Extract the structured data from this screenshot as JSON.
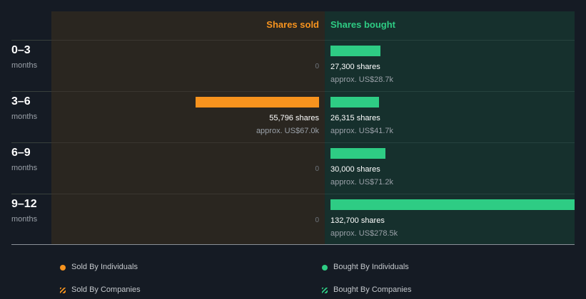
{
  "colors": {
    "sold": "#f7931e",
    "bought": "#2ecc84"
  },
  "headers": {
    "sold": "Shares sold",
    "bought": "Shares bought"
  },
  "chart_data": {
    "type": "bar",
    "categories": [
      "0–3",
      "3–6",
      "6–9",
      "9–12"
    ],
    "category_unit": "months",
    "series": [
      {
        "name": "Shares sold",
        "values": [
          0,
          55796,
          0,
          0
        ],
        "labels": [
          "0",
          "55,796 shares",
          "0",
          "0"
        ],
        "approx": [
          "",
          "approx. US$67.0k",
          "",
          ""
        ]
      },
      {
        "name": "Shares bought",
        "values": [
          27300,
          26315,
          30000,
          132700
        ],
        "labels": [
          "27,300 shares",
          "26,315 shares",
          "30,000 shares",
          "132,700 shares"
        ],
        "approx": [
          "approx. US$28.7k",
          "approx. US$41.7k",
          "approx. US$71.2k",
          "approx. US$278.5k"
        ]
      }
    ],
    "legend": [
      "Sold By Individuals",
      "Bought By Individuals",
      "Sold By Companies",
      "Bought By Companies"
    ],
    "legend_position": "bottom"
  }
}
